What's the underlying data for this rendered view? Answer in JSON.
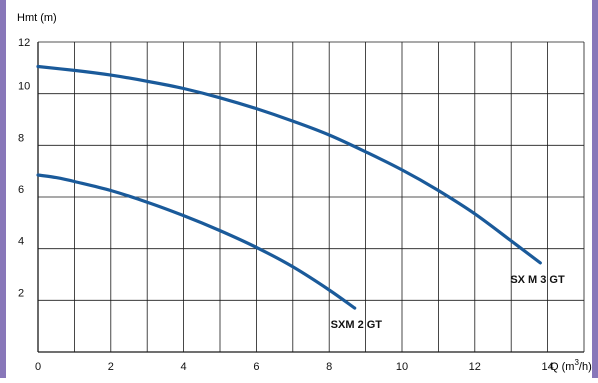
{
  "colors": {
    "frame": "#8877b9",
    "grid": "#1a1a1a",
    "curve": "#1a5a9a",
    "text": "#111111"
  },
  "chart_data": {
    "type": "line",
    "ylabel": "Hmt (m)",
    "xlabel": "Q (m³/h)",
    "xlabel_parts": {
      "prefix": "Q (m",
      "sup": "3",
      "suffix": "/h)"
    },
    "xlim": [
      0,
      15
    ],
    "ylim": [
      0,
      12
    ],
    "x_ticks": [
      0,
      2,
      4,
      6,
      8,
      10,
      12,
      14
    ],
    "y_ticks": [
      2,
      4,
      6,
      8,
      10,
      12
    ],
    "x_grid_step": 1,
    "y_grid_step": 2,
    "grid": true,
    "series": [
      {
        "name": "SX M 3 GT",
        "x": [
          0,
          1,
          2,
          3,
          4,
          5,
          6,
          7,
          8,
          9,
          10,
          11,
          12,
          13,
          13.8
        ],
        "y": [
          11.05,
          10.9,
          10.72,
          10.48,
          10.2,
          9.84,
          9.42,
          8.94,
          8.4,
          7.75,
          7.05,
          6.25,
          5.35,
          4.3,
          3.45
        ]
      },
      {
        "name": "SXM 2 GT",
        "x": [
          0,
          0.5,
          1,
          2,
          3,
          4,
          5,
          6,
          7,
          8,
          8.7
        ],
        "y": [
          6.85,
          6.75,
          6.6,
          6.25,
          5.8,
          5.28,
          4.7,
          4.05,
          3.3,
          2.4,
          1.7
        ]
      }
    ]
  }
}
